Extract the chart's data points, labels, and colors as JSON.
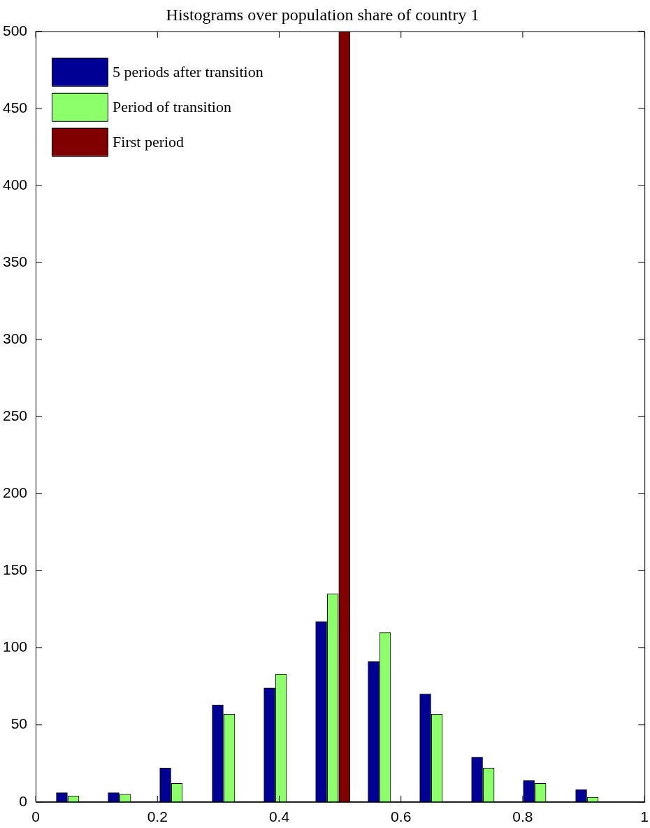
{
  "chart_data": {
    "type": "bar",
    "title": "Histograms over population share of country 1",
    "series": [
      {
        "name": "5 periods after transition",
        "color": "#000094",
        "x": [
          0.043,
          0.128,
          0.213,
          0.299,
          0.384,
          0.469,
          0.555,
          0.64,
          0.725,
          0.81,
          0.896
        ],
        "values": [
          6,
          6,
          22,
          63,
          74,
          117,
          91,
          70,
          29,
          14,
          8
        ]
      },
      {
        "name": "Period of transition",
        "color": "#8cff6b",
        "x": [
          0.062,
          0.147,
          0.232,
          0.318,
          0.403,
          0.488,
          0.574,
          0.659,
          0.744,
          0.829,
          0.915
        ],
        "values": [
          4,
          5,
          12,
          57,
          83,
          135,
          110,
          57,
          22,
          12,
          3
        ]
      },
      {
        "name": "First period",
        "color": "#800000",
        "x": [
          0.507
        ],
        "values": [
          500
        ]
      }
    ],
    "xlim": [
      0,
      1
    ],
    "xticks": [
      0,
      0.2,
      0.4,
      0.6,
      0.8,
      1
    ],
    "ylim": [
      0,
      500
    ],
    "yticks": [
      0,
      50,
      100,
      150,
      200,
      250,
      300,
      350,
      400,
      450,
      500
    ],
    "grid": false,
    "legend": "top left"
  }
}
